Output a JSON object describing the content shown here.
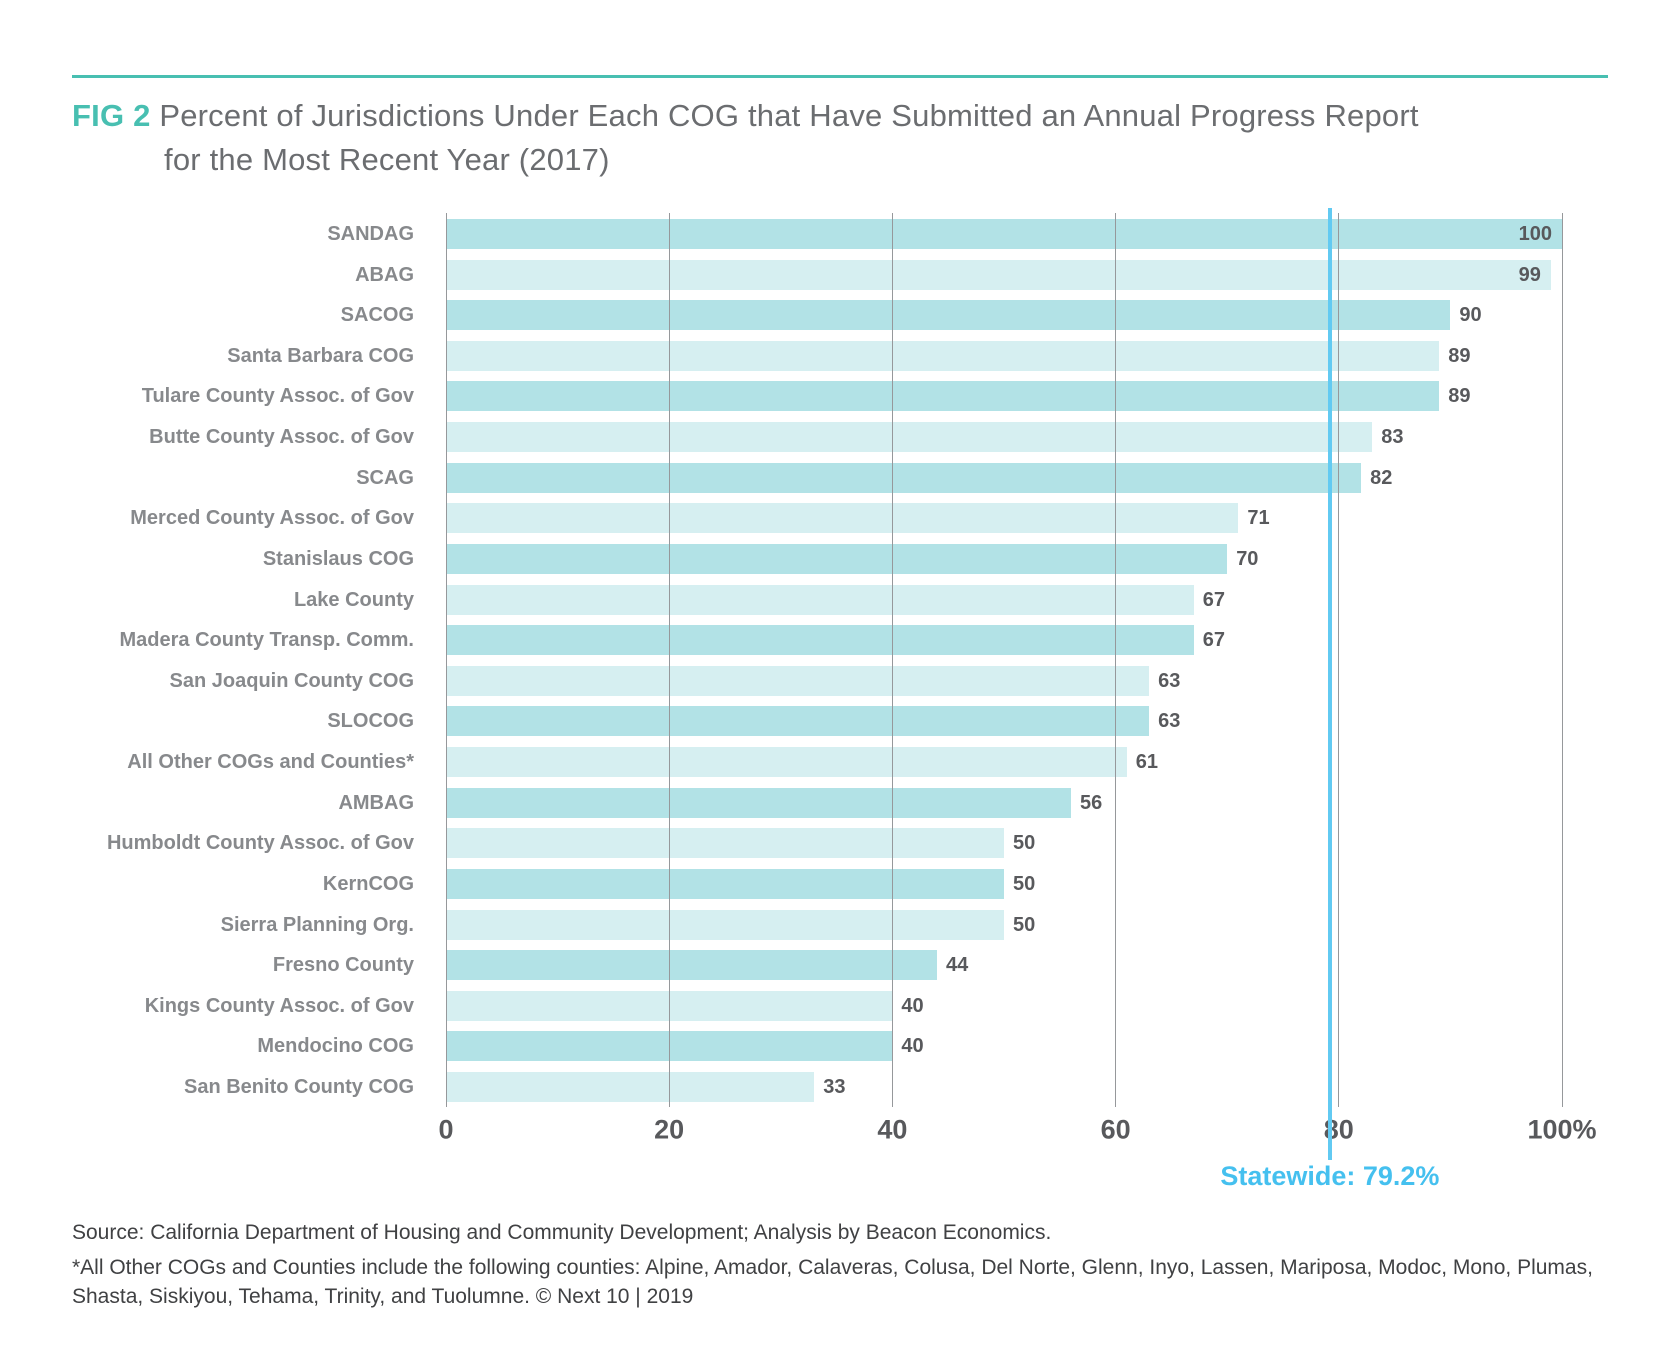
{
  "header": {
    "fig_label": "FIG 2",
    "title_line1": "Percent of Jurisdictions Under Each COG that Have Submitted an Annual Progress Report",
    "title_line2": "for the Most Recent Year (2017)"
  },
  "chart_data": {
    "type": "bar",
    "orientation": "horizontal",
    "title": "Percent of Jurisdictions Under Each COG that Have Submitted an Annual Progress Report for the Most Recent Year (2017)",
    "categories": [
      "SANDAG",
      "ABAG",
      "SACOG",
      "Santa Barbara COG",
      "Tulare County Assoc. of Gov",
      "Butte County Assoc. of Gov",
      "SCAG",
      "Merced County Assoc. of Gov",
      "Stanislaus COG",
      "Lake County",
      "Madera County Transp. Comm.",
      "San Joaquin County COG",
      "SLOCOG",
      "All Other COGs and Counties*",
      "AMBAG",
      "Humboldt County Assoc. of Gov",
      "KernCOG",
      "Sierra Planning Org.",
      "Fresno County",
      "Kings County Assoc. of Gov",
      "Mendocino COG",
      "San Benito County COG"
    ],
    "values": [
      100,
      99,
      90,
      89,
      89,
      83,
      82,
      71,
      70,
      67,
      67,
      63,
      63,
      61,
      56,
      50,
      50,
      50,
      44,
      40,
      40,
      33
    ],
    "xlim": [
      0,
      100
    ],
    "x_tick_values": [
      0,
      20,
      40,
      60,
      80,
      100
    ],
    "x_tick_labels": [
      "0",
      "20",
      "40",
      "60",
      "80",
      "100%"
    ],
    "grid": "vertical",
    "reference_line": {
      "value": 79.2,
      "label": "Statewide: 79.2%"
    }
  },
  "colors": {
    "bar_dark": "#b2e2e6",
    "bar_light": "#d6eff1",
    "teal_accent": "#48bfb1",
    "title_text": "#6b6d70",
    "category_text": "#87898c",
    "value_text": "#58595c",
    "tick_text": "#58595c",
    "gridline": "#96989b",
    "reference_line_blue": "#62caf2",
    "reference_text_blue": "#45c0ef",
    "footer_text": "#404143"
  },
  "footer": {
    "source": "Source: California Department of Housing and Community Development; Analysis by Beacon Economics.",
    "footnote": "*All Other COGs and Counties include the following counties: Alpine, Amador, Calaveras, Colusa, Del Norte, Glenn, Inyo, Lassen, Mariposa, Modoc, Mono, Plumas, Shasta, Siskiyou, Tehama, Trinity, and Tuolumne. © Next 10 | 2019"
  }
}
